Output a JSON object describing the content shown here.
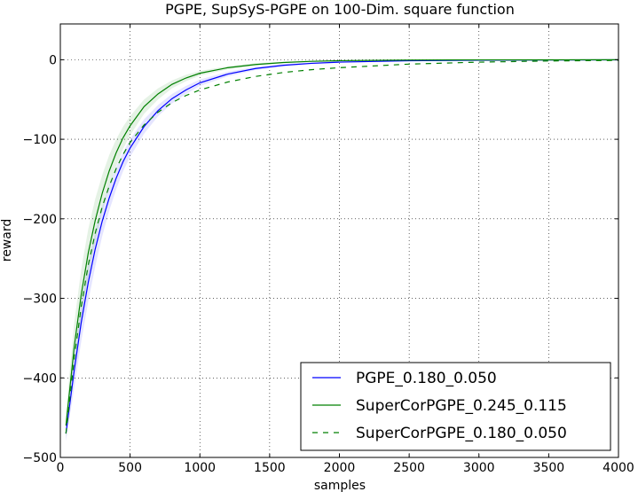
{
  "chart_data": {
    "type": "line",
    "title": "PGPE, SupSyS-PGPE on 100-Dim. square function",
    "xlabel": "samples",
    "ylabel": "reward",
    "xlim": [
      0,
      4000
    ],
    "ylim": [
      -500,
      45
    ],
    "xticks": [
      0,
      500,
      1000,
      1500,
      2000,
      2500,
      3000,
      3500,
      4000
    ],
    "yticks": [
      -500,
      -400,
      -300,
      -200,
      -100,
      0
    ],
    "xtick_labels": [
      "0",
      "500",
      "1000",
      "1500",
      "2000",
      "2500",
      "3000",
      "3500",
      "4000"
    ],
    "ytick_labels": [
      "−500",
      "−400",
      "−300",
      "−200",
      "−100",
      "0"
    ],
    "grid": true,
    "legend_position": "bottom-right",
    "series": [
      {
        "name": "PGPE_0.180_0.050",
        "color": "#0000ff",
        "style": "solid",
        "band": true,
        "x": [
          40,
          100,
          150,
          200,
          250,
          300,
          350,
          400,
          450,
          500,
          600,
          700,
          800,
          900,
          1000,
          1200,
          1400,
          1600,
          1800,
          2000,
          2500,
          3000,
          3500,
          4000
        ],
        "y": [
          -470,
          -390,
          -330,
          -280,
          -238,
          -203,
          -174,
          -149,
          -128,
          -111,
          -84,
          -64,
          -49,
          -38,
          -29,
          -18,
          -11,
          -7,
          -4.5,
          -3,
          -1.3,
          -0.6,
          -0.3,
          -0.1
        ],
        "spread": [
          10,
          22,
          24,
          24,
          22,
          19,
          16,
          14,
          12,
          11,
          9,
          7,
          6,
          5,
          4,
          3,
          2,
          1.5,
          1,
          0.8,
          0.4,
          0.2,
          0.1,
          0.1
        ]
      },
      {
        "name": "SuperCorPGPE_0.245_0.115",
        "color": "#008000",
        "style": "solid",
        "band": true,
        "x": [
          40,
          100,
          150,
          200,
          250,
          300,
          350,
          400,
          450,
          500,
          600,
          700,
          800,
          900,
          1000,
          1200,
          1400,
          1600,
          1800,
          2000,
          2500,
          3000,
          3500,
          4000
        ],
        "y": [
          -460,
          -360,
          -295,
          -243,
          -202,
          -168,
          -140,
          -117,
          -98,
          -83,
          -59,
          -43,
          -31,
          -23,
          -17,
          -10,
          -6,
          -3.5,
          -2,
          -1.2,
          -0.4,
          -0.2,
          -0.1,
          0
        ],
        "spread": [
          15,
          30,
          32,
          30,
          27,
          23,
          20,
          17,
          14,
          12,
          9,
          7,
          5,
          4,
          3,
          2,
          1.5,
          1,
          0.7,
          0.5,
          0.2,
          0.1,
          0.1,
          0.05
        ]
      },
      {
        "name": "SuperCorPGPE_0.180_0.050",
        "color": "#008000",
        "style": "dashed",
        "band": false,
        "x": [
          40,
          100,
          150,
          200,
          250,
          300,
          350,
          400,
          450,
          500,
          600,
          700,
          800,
          900,
          1000,
          1200,
          1400,
          1600,
          1800,
          2000,
          2500,
          3000,
          3500,
          4000
        ],
        "y": [
          -470,
          -375,
          -310,
          -258,
          -218,
          -185,
          -159,
          -137,
          -119,
          -104,
          -82,
          -66,
          -54,
          -45,
          -38,
          -28,
          -21,
          -16,
          -12.5,
          -10,
          -5.5,
          -3,
          -1.6,
          -0.8
        ]
      }
    ]
  }
}
